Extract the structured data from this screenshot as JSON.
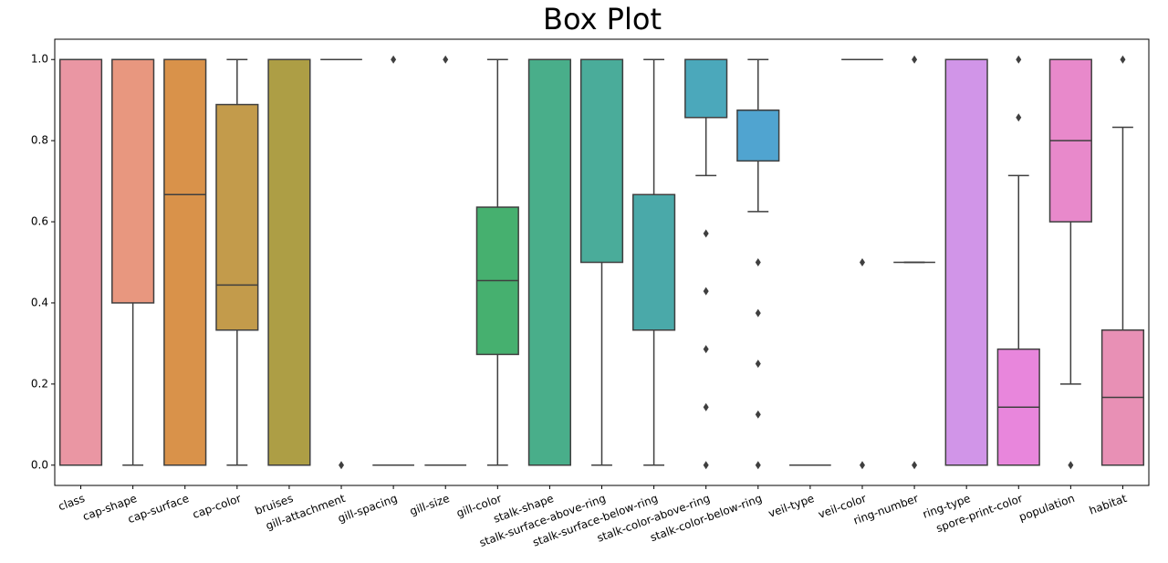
{
  "chart_data": {
    "type": "box",
    "title": "Box Plot",
    "categories": [
      "class",
      "cap-shape",
      "cap-surface",
      "cap-color",
      "bruises",
      "gill-attachment",
      "gill-spacing",
      "gill-size",
      "gill-color",
      "stalk-shape",
      "stalk-surface-above-ring",
      "stalk-surface-below-ring",
      "stalk-color-above-ring",
      "stalk-color-below-ring",
      "veil-type",
      "veil-color",
      "ring-number",
      "ring-type",
      "spore-print-color",
      "population",
      "habitat"
    ],
    "colors": [
      "#ea96a3",
      "#e8977f",
      "#d9924a",
      "#c39b4b",
      "#ad9e45",
      "#9ca43f",
      "#86a83f",
      "#5fb04f",
      "#46b06f",
      "#49ae8a",
      "#4aac9a",
      "#4aa9a9",
      "#4ba8bb",
      "#50a4d0",
      "#6a9fe0",
      "#909ae8",
      "#b08fe6",
      "#d195e8",
      "#e886dc",
      "#e889cb",
      "#e890b5"
    ],
    "boxes": [
      {
        "whislo": 0,
        "q1": 0,
        "med": 0,
        "q3": 1,
        "whishi": 1,
        "fliers": []
      },
      {
        "whislo": 0,
        "q1": 0.4,
        "med": 1,
        "q3": 1,
        "whishi": 1,
        "fliers": []
      },
      {
        "whislo": 0,
        "q1": 0,
        "med": 0.667,
        "q3": 1,
        "whishi": 1,
        "fliers": []
      },
      {
        "whislo": 0,
        "q1": 0.333,
        "med": 0.444,
        "q3": 0.889,
        "whishi": 1,
        "fliers": []
      },
      {
        "whislo": 0,
        "q1": 0,
        "med": 0,
        "q3": 1,
        "whishi": 1,
        "fliers": []
      },
      {
        "whislo": 1,
        "q1": 1,
        "med": 1,
        "q3": 1,
        "whishi": 1,
        "fliers": [
          0
        ]
      },
      {
        "whislo": 0,
        "q1": 0,
        "med": 0,
        "q3": 0,
        "whishi": 0,
        "fliers": [
          1
        ]
      },
      {
        "whislo": 0,
        "q1": 0,
        "med": 0,
        "q3": 0,
        "whishi": 0,
        "fliers": [
          1
        ]
      },
      {
        "whislo": 0,
        "q1": 0.273,
        "med": 0.455,
        "q3": 0.636,
        "whishi": 1,
        "fliers": []
      },
      {
        "whislo": 0,
        "q1": 0,
        "med": 1,
        "q3": 1,
        "whishi": 1,
        "fliers": []
      },
      {
        "whislo": 0,
        "q1": 0.5,
        "med": 1,
        "q3": 1,
        "whishi": 1,
        "fliers": []
      },
      {
        "whislo": 0,
        "q1": 0.333,
        "med": 0.667,
        "q3": 0.667,
        "whishi": 1,
        "fliers": []
      },
      {
        "whislo": 0.714,
        "q1": 0.857,
        "med": 1,
        "q3": 1,
        "whishi": 1,
        "fliers": [
          0,
          0.143,
          0.286,
          0.429,
          0.571
        ]
      },
      {
        "whislo": 0.625,
        "q1": 0.75,
        "med": 0.875,
        "q3": 0.875,
        "whishi": 1,
        "fliers": [
          0,
          0.125,
          0.25,
          0.375,
          0.5
        ]
      },
      {
        "whislo": 0,
        "q1": 0,
        "med": 0,
        "q3": 0,
        "whishi": 0,
        "fliers": []
      },
      {
        "whislo": 1,
        "q1": 1,
        "med": 1,
        "q3": 1,
        "whishi": 1,
        "fliers": [
          0,
          0.5
        ]
      },
      {
        "whislo": 0.5,
        "q1": 0.5,
        "med": 0.5,
        "q3": 0.5,
        "whishi": 0.5,
        "fliers": [
          0,
          1
        ]
      },
      {
        "whislo": 0,
        "q1": 0,
        "med": 1,
        "q3": 1,
        "whishi": 1,
        "fliers": []
      },
      {
        "whislo": 0,
        "q1": 0,
        "med": 0.143,
        "q3": 0.286,
        "whishi": 0.714,
        "fliers": [
          0.857,
          1
        ]
      },
      {
        "whislo": 0.2,
        "q1": 0.6,
        "med": 0.8,
        "q3": 1,
        "whishi": 1,
        "fliers": [
          0
        ]
      },
      {
        "whislo": 0,
        "q1": 0,
        "med": 0.167,
        "q3": 0.333,
        "whishi": 0.833,
        "fliers": [
          1
        ]
      }
    ],
    "line_color": "#3f3f3f",
    "ylim": [
      -0.05,
      1.05
    ],
    "yticks": [
      {
        "value": 0,
        "label": "0.0"
      },
      {
        "value": 0.2,
        "label": "0.2"
      },
      {
        "value": 0.4,
        "label": "0.4"
      },
      {
        "value": 0.6,
        "label": "0.6"
      },
      {
        "value": 0.8,
        "label": "0.8"
      },
      {
        "value": 1,
        "label": "1.0"
      }
    ]
  }
}
